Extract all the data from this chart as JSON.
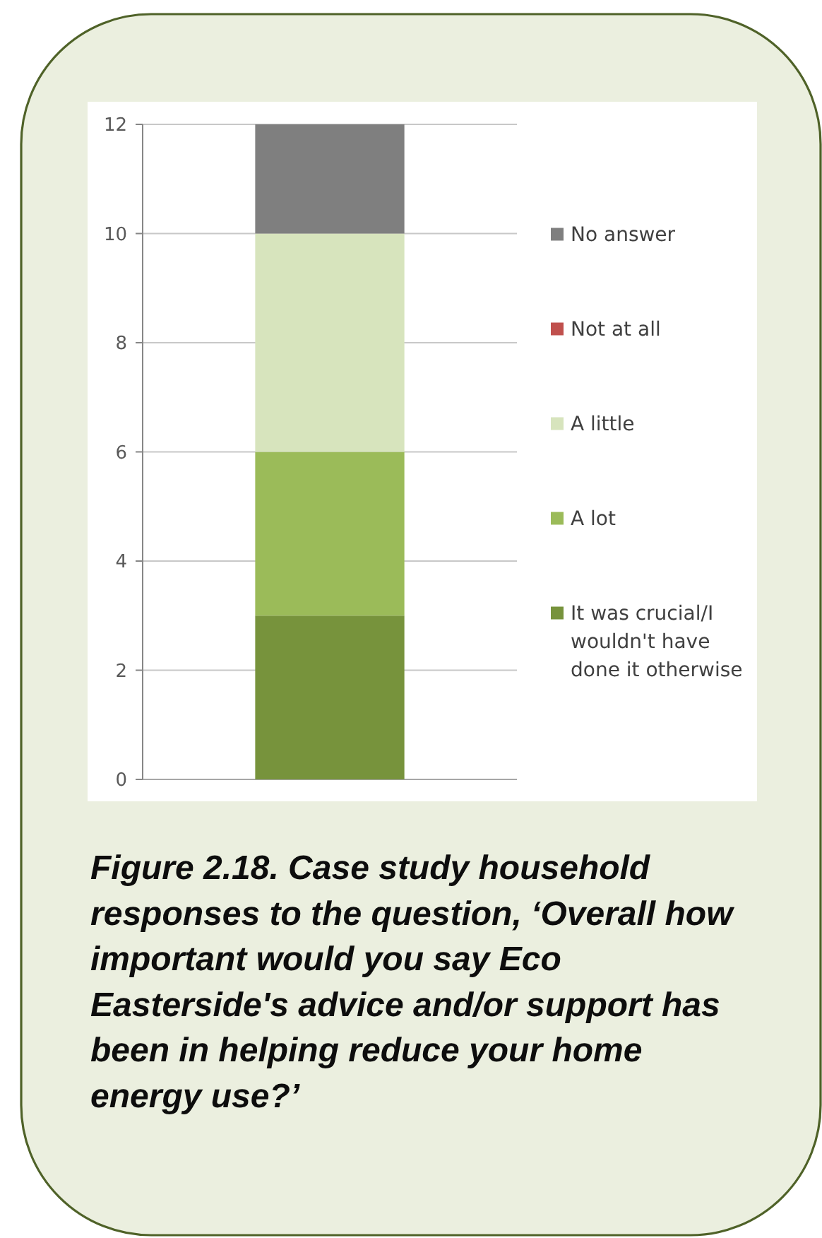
{
  "chart_data": {
    "type": "bar",
    "stacked": true,
    "title": "Figure 2.18. Case study household responses to the question, ‘Overall how important would you say Eco Easterside's advice and/or support has been in helping reduce your home energy use?’",
    "categories": [
      null
    ],
    "series": [
      {
        "name": "It was crucial/I wouldn't have done it otherwise",
        "color": "#77933c",
        "values": [
          3
        ]
      },
      {
        "name": "A lot",
        "color": "#9bbb59",
        "values": [
          3
        ]
      },
      {
        "name": "A little",
        "color": "#d7e4bd",
        "values": [
          4
        ]
      },
      {
        "name": "Not at all",
        "color": "#c0504d",
        "values": [
          0
        ]
      },
      {
        "name": "No answer",
        "color": "#7f7f7f",
        "values": [
          2
        ]
      }
    ],
    "ylim": [
      0,
      12
    ],
    "yticks": [
      0,
      2,
      4,
      6,
      8,
      10,
      12
    ],
    "grid": "y",
    "legend": "right"
  }
}
